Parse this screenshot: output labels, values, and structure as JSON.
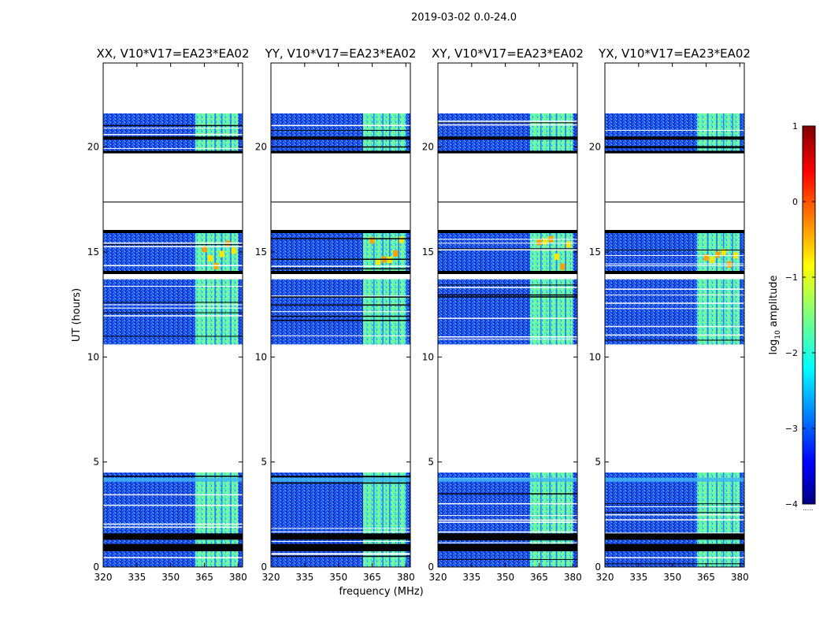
{
  "figure": {
    "suptitle": "2019-03-02 0.0-24.0"
  },
  "chart_data": {
    "type": "heatmap",
    "xlabel": "frequency (MHz)",
    "ylabel": "UT (hours)",
    "xlim": [
      320,
      382
    ],
    "ylim": [
      0,
      24
    ],
    "xticks": [
      320,
      335,
      350,
      365,
      380
    ],
    "yticks": [
      0,
      5,
      10,
      15,
      20
    ],
    "panels": [
      {
        "title": "XX, V10*V17=EA23*EA02",
        "polarization": "XX"
      },
      {
        "title": "YY, V10*V17=EA23*EA02",
        "polarization": "YY"
      },
      {
        "title": "XY, V10*V17=EA23*EA02",
        "polarization": "XY"
      },
      {
        "title": "YX, V10*V17=EA23*EA02",
        "polarization": "YX"
      }
    ],
    "data_time_ranges_hours": [
      [
        0.0,
        4.5
      ],
      [
        10.6,
        13.7
      ],
      [
        14.0,
        16.0
      ],
      [
        19.7,
        21.6
      ]
    ],
    "bright_band_mhz": [
      361,
      380
    ],
    "colorbar": {
      "label": "log10 amplitude",
      "range": [
        -4,
        1
      ],
      "ticks": [
        -4,
        -3,
        -2,
        -1,
        0,
        1
      ],
      "tick_labels": [
        "−4",
        "−3",
        "−2",
        "−1",
        "0",
        "1"
      ],
      "colormap": "jet",
      "footnote": "......"
    }
  }
}
